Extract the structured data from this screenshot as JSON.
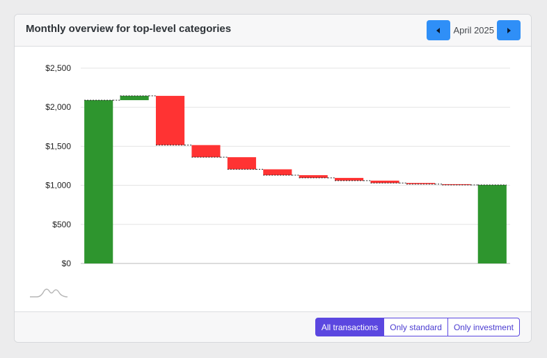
{
  "header": {
    "title": "Monthly overview for top-level categories",
    "month_label": "April 2025",
    "prev_icon": "caret-left-icon",
    "next_icon": "caret-right-icon"
  },
  "footer": {
    "filters": [
      {
        "label": "All transactions",
        "active": true
      },
      {
        "label": "Only standard",
        "active": false
      },
      {
        "label": "Only investment",
        "active": false
      }
    ]
  },
  "colors": {
    "increase": "#2e952e",
    "decrease": "#ff3333",
    "nav_button": "#2f8ff7",
    "filter_accent": "#5b47e0"
  },
  "chart_data": {
    "type": "bar",
    "subtype": "waterfall",
    "title": "",
    "xlabel": "",
    "ylabel": "",
    "ylim": [
      0,
      2500
    ],
    "yticks": [
      "$0",
      "$500",
      "$1,000",
      "$1,500",
      "$2,000",
      "$2,500"
    ],
    "ytick_values": [
      0,
      500,
      1000,
      1500,
      2000,
      2500
    ],
    "grid": true,
    "legend": "none",
    "steps": [
      {
        "kind": "total",
        "start": 0,
        "end": 2090,
        "value": 2090
      },
      {
        "kind": "increase",
        "start": 2090,
        "end": 2145,
        "value": 55
      },
      {
        "kind": "decrease",
        "start": 2145,
        "end": 1515,
        "value": -630
      },
      {
        "kind": "decrease",
        "start": 1515,
        "end": 1360,
        "value": -155
      },
      {
        "kind": "decrease",
        "start": 1360,
        "end": 1205,
        "value": -155
      },
      {
        "kind": "decrease",
        "start": 1205,
        "end": 1130,
        "value": -75
      },
      {
        "kind": "decrease",
        "start": 1130,
        "end": 1095,
        "value": -35
      },
      {
        "kind": "decrease",
        "start": 1095,
        "end": 1060,
        "value": -35
      },
      {
        "kind": "decrease",
        "start": 1060,
        "end": 1030,
        "value": -30
      },
      {
        "kind": "decrease",
        "start": 1030,
        "end": 1015,
        "value": -15
      },
      {
        "kind": "decrease",
        "start": 1015,
        "end": 1005,
        "value": -10
      },
      {
        "kind": "total",
        "start": 0,
        "end": 1005,
        "value": 1005
      }
    ]
  }
}
